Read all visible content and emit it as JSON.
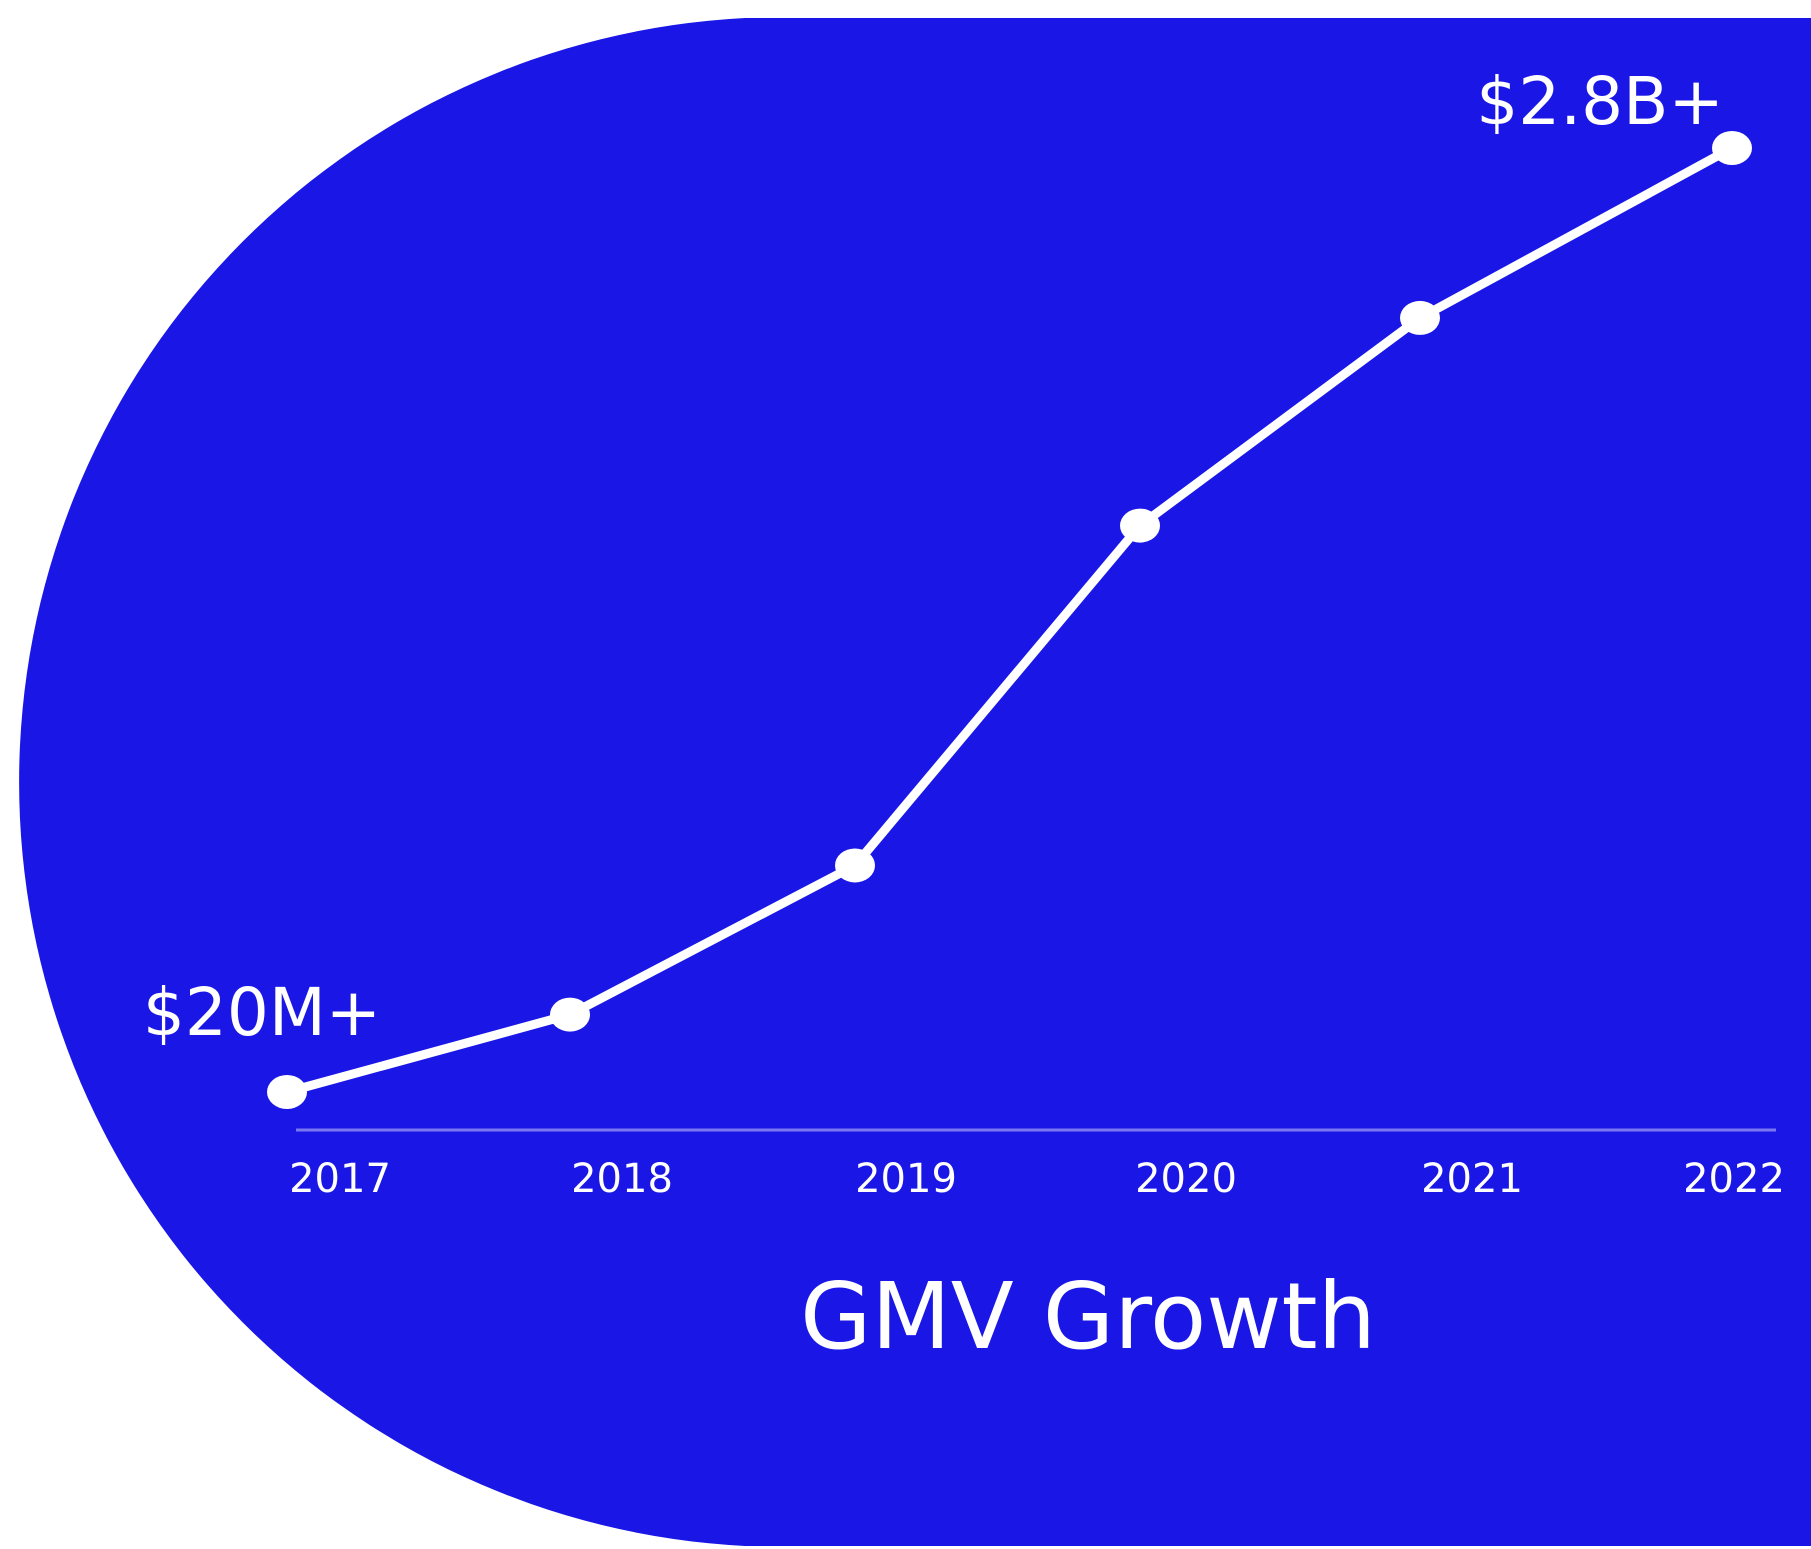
{
  "colors": {
    "background": "#1a17e6",
    "foreground": "#ffffff",
    "baseline": "#7a78f0"
  },
  "chart_data": {
    "type": "line",
    "title": "GMV Growth",
    "xlabel": "",
    "ylabel": "",
    "categories": [
      "2017",
      "2018",
      "2019",
      "2020",
      "2021",
      "2022"
    ],
    "values_relative": [
      0.0,
      0.082,
      0.24,
      0.6,
      0.82,
      1.0
    ],
    "annotations": [
      {
        "category": "2017",
        "text": "$20M+"
      },
      {
        "category": "2022",
        "text": "$2.8B+"
      }
    ],
    "legend": "none",
    "grid": false,
    "y_axis_labels": false
  }
}
